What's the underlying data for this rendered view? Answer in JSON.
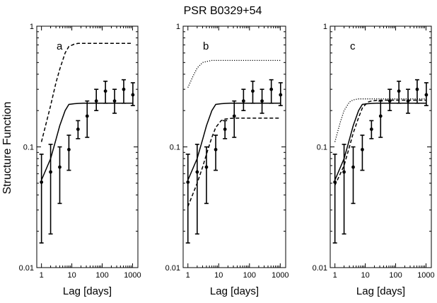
{
  "chart_data": {
    "type": "line",
    "title": "PSR B0329+54",
    "ylabel": "Structure Function",
    "xlabel": "Lag [days]",
    "xscale": "log",
    "yscale": "log",
    "xlim": [
      0.7,
      1500
    ],
    "ylim": [
      0.01,
      1
    ],
    "x_ticks": [
      "1",
      "10",
      "100",
      "1000"
    ],
    "y_ticks": [
      "0.01",
      "0.1",
      "1"
    ],
    "observations": {
      "x": [
        1,
        2,
        4,
        8,
        16,
        32,
        64,
        128,
        256,
        512,
        1024
      ],
      "y": [
        0.051,
        0.062,
        0.068,
        0.095,
        0.14,
        0.18,
        0.24,
        0.29,
        0.24,
        0.3,
        0.27
      ],
      "err_low": [
        0.016,
        0.019,
        0.034,
        0.064,
        0.117,
        0.12,
        0.2,
        0.23,
        0.19,
        0.23,
        0.22
      ],
      "err_high": [
        0.087,
        0.105,
        0.1,
        0.125,
        0.165,
        0.24,
        0.3,
        0.35,
        0.3,
        0.36,
        0.34
      ]
    },
    "panels": [
      {
        "label": "a",
        "series": [
          {
            "style": "solid",
            "x": [
              1,
              2,
              3,
              4,
              6,
              8,
              12,
              16,
              24,
              32,
              64,
              128,
              256,
              512,
              1024
            ],
            "y": [
              0.053,
              0.08,
              0.115,
              0.15,
              0.2,
              0.225,
              0.228,
              0.229,
              0.23,
              0.23,
              0.23,
              0.23,
              0.23,
              0.23,
              0.23
            ]
          },
          {
            "style": "dashed",
            "x": [
              1,
              2,
              3,
              4,
              6,
              8,
              12,
              16,
              24,
              32,
              64,
              128,
              256,
              512,
              1024
            ],
            "y": [
              0.11,
              0.22,
              0.34,
              0.44,
              0.6,
              0.68,
              0.71,
              0.72,
              0.72,
              0.72,
              0.72,
              0.72,
              0.72,
              0.72,
              0.72
            ]
          }
        ]
      },
      {
        "label": "b",
        "series": [
          {
            "style": "solid",
            "x": [
              1,
              2,
              3,
              4,
              6,
              8,
              12,
              16,
              24,
              32,
              64,
              128,
              256,
              512,
              1024
            ],
            "y": [
              0.053,
              0.08,
              0.115,
              0.15,
              0.2,
              0.225,
              0.228,
              0.229,
              0.23,
              0.23,
              0.23,
              0.23,
              0.23,
              0.23,
              0.23
            ]
          },
          {
            "style": "dashed",
            "x": [
              1,
              2,
              3,
              4,
              6,
              8,
              12,
              16,
              24,
              32,
              64,
              128,
              256,
              512,
              1024
            ],
            "y": [
              0.032,
              0.05,
              0.068,
              0.087,
              0.12,
              0.145,
              0.165,
              0.17,
              0.172,
              0.173,
              0.173,
              0.173,
              0.173,
              0.173,
              0.173
            ]
          },
          {
            "style": "dotted",
            "x": [
              1,
              1.5,
              2,
              3,
              4,
              6,
              8,
              16,
              32,
              64,
              128,
              256,
              512,
              1024
            ],
            "y": [
              0.31,
              0.39,
              0.45,
              0.5,
              0.51,
              0.52,
              0.52,
              0.52,
              0.52,
              0.52,
              0.52,
              0.52,
              0.52,
              0.52
            ]
          }
        ]
      },
      {
        "label": "c",
        "series": [
          {
            "style": "solid",
            "x": [
              1,
              2,
              3,
              4,
              6,
              8,
              12,
              16,
              24,
              32,
              64,
              128,
              256,
              512,
              1024
            ],
            "y": [
              0.053,
              0.08,
              0.115,
              0.15,
              0.2,
              0.225,
              0.228,
              0.229,
              0.23,
              0.23,
              0.23,
              0.23,
              0.23,
              0.23,
              0.23
            ]
          },
          {
            "style": "dashed",
            "x": [
              1,
              2,
              3,
              4,
              6,
              8,
              12,
              16,
              24,
              32,
              64,
              128,
              256,
              512,
              1024
            ],
            "y": [
              0.048,
              0.07,
              0.1,
              0.13,
              0.175,
              0.21,
              0.235,
              0.24,
              0.243,
              0.244,
              0.244,
              0.244,
              0.244,
              0.244,
              0.244
            ]
          },
          {
            "style": "dotted",
            "x": [
              1,
              1.5,
              2,
              3,
              4,
              6,
              8,
              16,
              32,
              64,
              128,
              256,
              512,
              1024
            ],
            "y": [
              0.11,
              0.16,
              0.2,
              0.235,
              0.245,
              0.25,
              0.25,
              0.25,
              0.25,
              0.25,
              0.25,
              0.25,
              0.25,
              0.25
            ]
          }
        ]
      }
    ]
  }
}
